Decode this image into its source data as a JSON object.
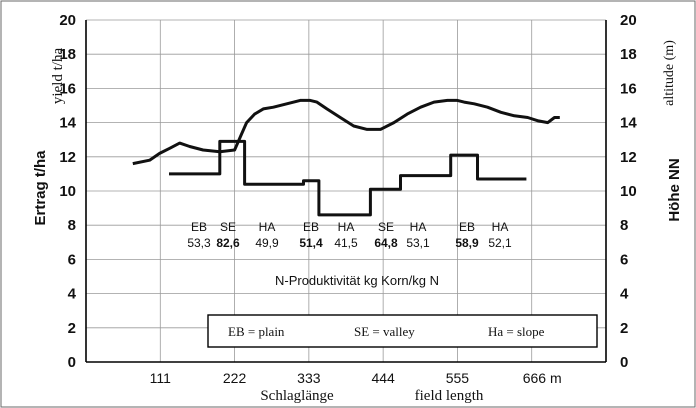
{
  "chart_data": {
    "type": "line",
    "xlabel_de": "Schlaglänge",
    "xlabel_en": "field length",
    "ylabel_left_de": "Ertrag t/ha",
    "ylabel_left_en": "yield t/ha",
    "ylabel_right_de": "Höhe NN",
    "ylabel_right_en": "altitude (m)",
    "x_ticks": [
      "111",
      "222",
      "333",
      "444",
      "555",
      "666 m"
    ],
    "x_tick_values": [
      111,
      222,
      333,
      444,
      555,
      666
    ],
    "xlim": [
      0,
      777
    ],
    "ylim": [
      0,
      20
    ],
    "y_ticks": [
      "0",
      "2",
      "4",
      "6",
      "8",
      "10",
      "12",
      "14",
      "16",
      "18",
      "20"
    ],
    "grid": true,
    "series": [
      {
        "x": [
          70,
          95,
          110,
          125,
          140,
          155,
          175,
          200,
          222,
          232,
          240,
          252,
          265,
          280,
          300,
          320,
          335,
          345,
          360,
          380,
          400,
          420,
          440,
          460,
          480,
          500,
          520,
          540,
          555,
          565,
          580,
          600,
          620,
          640,
          660,
          676,
          690,
          700,
          708
        ],
        "y": [
          11.6,
          11.8,
          12.2,
          12.5,
          12.8,
          12.6,
          12.4,
          12.3,
          12.4,
          13.3,
          14.0,
          14.5,
          14.8,
          14.9,
          15.1,
          15.3,
          15.3,
          15.2,
          14.8,
          14.3,
          13.8,
          13.6,
          13.6,
          14.0,
          14.5,
          14.9,
          15.2,
          15.3,
          15.3,
          15.2,
          15.1,
          14.9,
          14.6,
          14.4,
          14.3,
          14.1,
          14.0,
          14.3,
          14.3
        ]
      },
      {
        "x": [
          124,
          200,
          200,
          237,
          237,
          325,
          325,
          348,
          348,
          425,
          425,
          470,
          470,
          545,
          545,
          585,
          585,
          658
        ],
        "y": [
          11.0,
          11.0,
          12.9,
          12.9,
          10.4,
          10.4,
          10.6,
          10.6,
          8.6,
          8.6,
          10.1,
          10.1,
          10.9,
          10.9,
          12.1,
          12.1,
          10.7,
          10.7
        ]
      }
    ],
    "segments": [
      {
        "label": "EB",
        "value": "53,3",
        "bold": false
      },
      {
        "label": "SE",
        "value": "82,6",
        "bold": true
      },
      {
        "label": "HA",
        "value": "49,9",
        "bold": false
      },
      {
        "label": "EB",
        "value": "51,4",
        "bold": true
      },
      {
        "label": "HA",
        "value": "41,5",
        "bold": false
      },
      {
        "label": "SE",
        "value": "64,8",
        "bold": true
      },
      {
        "label": "HA",
        "value": "53,1",
        "bold": false
      },
      {
        "label": "EB",
        "value": "58,9",
        "bold": true
      },
      {
        "label": "HA",
        "value": "52,1",
        "bold": false
      }
    ],
    "productivity_label": "N-Produktivität kg Korn/kg N",
    "legend": [
      "EB = plain",
      "SE = valley",
      "Ha = slope"
    ]
  }
}
